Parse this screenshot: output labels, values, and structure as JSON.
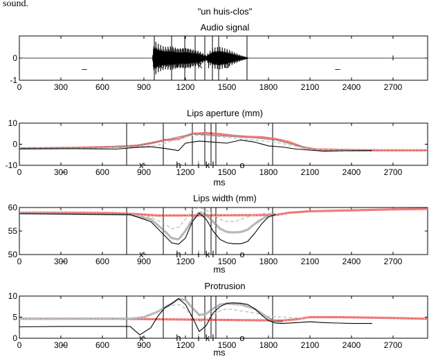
{
  "header_fragment": "sound.",
  "figure_title": "\"un huis-clos\"",
  "x_ticks": [
    0,
    300,
    600,
    900,
    1200,
    1500,
    1800,
    2100,
    2400,
    2700
  ],
  "phoneme_labels": [
    "x~",
    "h",
    "i",
    "k",
    "l",
    "o"
  ],
  "colors": {
    "red": "#e8201c",
    "dark_gray": "#888888",
    "light_gray": "#bdbdbd",
    "black": "#000000"
  },
  "chart_data": [
    {
      "type": "line",
      "title": "Audio signal",
      "xlabel": "",
      "ylabel": "",
      "xlim": [
        0,
        2950
      ],
      "ylim": [
        -1,
        1
      ],
      "yticks": [
        -1,
        0
      ],
      "segment_boundaries": [
        975,
        1100,
        1195,
        1270,
        1340,
        1395,
        1440,
        1645
      ],
      "phoneme_positions": [
        1040,
        1150,
        1233,
        1305,
        1367,
        1500
      ],
      "extra_marks": [
        {
          "x": 470,
          "label": "_"
        },
        {
          "x": 2300,
          "label": "_"
        }
      ],
      "signal_envelope": {
        "x": [
          960,
          975,
          1000,
          1050,
          1100,
          1150,
          1200,
          1250,
          1300,
          1350,
          1400,
          1450,
          1500,
          1550,
          1600,
          1645,
          1660
        ],
        "amplitude": [
          0.05,
          0.85,
          0.7,
          0.55,
          0.6,
          0.5,
          0.55,
          0.45,
          0.35,
          0.15,
          0.5,
          0.55,
          0.45,
          0.3,
          0.15,
          0.05,
          0
        ]
      }
    },
    {
      "type": "line",
      "title": "Lips aperture (mm)",
      "xlabel": "ms",
      "ylabel": "",
      "xlim": [
        0,
        2950
      ],
      "ylim": [
        -10,
        10
      ],
      "yticks": [
        -10,
        0,
        10
      ],
      "segment_boundaries": [
        775,
        1040,
        1250,
        1340,
        1385,
        1420,
        1830
      ],
      "phoneme_positions": [
        900,
        1150,
        1295,
        1360,
        1400,
        1610
      ],
      "extra_marks": [
        {
          "x": 320,
          "label": "_"
        }
      ],
      "series": [
        {
          "color": "red",
          "style": "dotted-thick",
          "x": [
            0,
            400,
            700,
            850,
            950,
            1050,
            1150,
            1250,
            1350,
            1450,
            1550,
            1650,
            1750,
            1850,
            1950,
            2050,
            2150,
            2250,
            2400,
            2600,
            2950
          ],
          "y": [
            -2,
            -1.7,
            -1.2,
            -0.7,
            0.5,
            2,
            2.5,
            5,
            5.3,
            4.8,
            4,
            3.5,
            3.3,
            2.5,
            1,
            -1.5,
            -2.5,
            -2.6,
            -2.8,
            -2.9,
            -2.9
          ]
        },
        {
          "color": "dark_gray",
          "style": "solid",
          "x": [
            0,
            500,
            800,
            1000,
            1150,
            1250,
            1350,
            1500,
            1700,
            1850,
            2000,
            2150,
            2400,
            2550
          ],
          "y": [
            -1.8,
            -1.6,
            -1,
            1,
            3.5,
            4.8,
            4.5,
            3.8,
            3,
            2,
            -0.5,
            -2.5,
            -3,
            -3
          ]
        },
        {
          "color": "light_gray",
          "style": "dashed",
          "x": [
            0,
            500,
            800,
            1000,
            1150,
            1250,
            1350,
            1500,
            1700,
            1850,
            2000,
            2150,
            2400,
            2550
          ],
          "y": [
            -2,
            -1.8,
            -1.5,
            -0.5,
            2.5,
            4.3,
            4.2,
            3.2,
            2,
            1,
            -1,
            -2.5,
            -3,
            -3
          ]
        },
        {
          "color": "black",
          "style": "solid",
          "x": [
            0,
            400,
            700,
            850,
            950,
            1050,
            1150,
            1200,
            1300,
            1400,
            1500,
            1600,
            1700,
            1800,
            1900,
            2000,
            2100,
            2200,
            2350,
            2550
          ],
          "y": [
            -2.2,
            -2.1,
            -2.3,
            -1.5,
            -1.2,
            -2,
            -3,
            0.5,
            1.5,
            1,
            0.5,
            2,
            1,
            -0.8,
            -1.3,
            -2.3,
            -2.8,
            -3.3,
            -3.1,
            -3
          ]
        }
      ]
    },
    {
      "type": "line",
      "title": "Lips width (mm)",
      "xlabel": "ms",
      "ylabel": "",
      "xlim": [
        0,
        2950
      ],
      "ylim": [
        50,
        60
      ],
      "yticks": [
        50,
        55,
        60
      ],
      "segment_boundaries": [
        775,
        1040,
        1250,
        1340,
        1385,
        1420,
        1830
      ],
      "phoneme_positions": [
        900,
        1150,
        1295,
        1360,
        1400,
        1610
      ],
      "extra_marks": [
        {
          "x": 320,
          "label": "_"
        }
      ],
      "series": [
        {
          "color": "red",
          "style": "dotted-thick",
          "x": [
            0,
            400,
            700,
            850,
            1000,
            1850,
            1950,
            2100,
            2400,
            2700,
            2950
          ],
          "y": [
            58.9,
            58.9,
            58.8,
            58.6,
            58.3,
            58.4,
            58.9,
            59.2,
            59.4,
            59.6,
            59.7
          ]
        },
        {
          "color": "dark_gray",
          "style": "dotted-thick",
          "x": [
            0,
            800,
            950,
            1050,
            1100,
            1150,
            1200,
            1250,
            1300,
            1350,
            1400,
            1450,
            1500,
            1550,
            1600,
            1650,
            1700,
            1750,
            1800,
            1850
          ],
          "y": [
            58.8,
            58.5,
            57.5,
            55,
            53.5,
            53.2,
            55,
            57.5,
            59,
            58.5,
            57,
            55.5,
            54.8,
            54.7,
            54.8,
            55.3,
            56.5,
            57.5,
            58.2,
            58.5
          ]
        },
        {
          "color": "light_gray",
          "style": "dashed",
          "x": [
            0,
            800,
            950,
            1050,
            1100,
            1150,
            1200,
            1250,
            1300,
            1350,
            1400,
            1450,
            1500,
            1550,
            1600,
            1650,
            1700,
            1750,
            1850
          ],
          "y": [
            58.8,
            58.5,
            58,
            56.5,
            55.5,
            55.8,
            57.5,
            59.5,
            60,
            59.5,
            58.5,
            57.5,
            57,
            57,
            57.5,
            58,
            58.5,
            58.7,
            58.8
          ]
        },
        {
          "color": "black",
          "style": "solid",
          "x": [
            0,
            800,
            950,
            1050,
            1100,
            1150,
            1200,
            1250,
            1300,
            1350,
            1400,
            1450,
            1500,
            1550,
            1600,
            1650,
            1700,
            1750,
            1800,
            1850
          ],
          "y": [
            58.7,
            58.5,
            57,
            54,
            52.5,
            52.2,
            53.5,
            57,
            58.8,
            57.5,
            55,
            53.2,
            52.5,
            52.3,
            52.3,
            52.8,
            54.5,
            56.5,
            58,
            58.5
          ]
        }
      ]
    },
    {
      "type": "line",
      "title": "Protrusion",
      "xlabel": "ms",
      "ylabel": "",
      "xlim": [
        0,
        2950
      ],
      "ylim": [
        0,
        10
      ],
      "yticks": [
        0,
        5,
        10
      ],
      "segment_boundaries": [
        775,
        1040,
        1250,
        1340,
        1385,
        1420,
        1830
      ],
      "phoneme_positions": [
        900,
        1150,
        1295,
        1360,
        1400,
        1610
      ],
      "extra_marks": [
        {
          "x": 320,
          "label": "_"
        }
      ],
      "series": [
        {
          "color": "red",
          "style": "dotted-thick",
          "x": [
            0,
            400,
            700,
            1900,
            2000,
            2100,
            2300,
            2500,
            2700,
            2950
          ],
          "y": [
            4.6,
            4.6,
            4.6,
            4.2,
            4.5,
            5,
            5,
            4.9,
            4.8,
            4.6
          ]
        },
        {
          "color": "dark_gray",
          "style": "dotted-thick",
          "x": [
            0,
            800,
            900,
            1000,
            1100,
            1150,
            1200,
            1250,
            1300,
            1350,
            1400,
            1450,
            1500,
            1600,
            1700,
            1800,
            1850,
            1900
          ],
          "y": [
            4.6,
            4.6,
            5,
            6.3,
            8.2,
            9.3,
            9.1,
            7.2,
            5.5,
            5.8,
            7,
            8,
            8.2,
            8,
            7,
            4.8,
            4,
            4
          ]
        },
        {
          "color": "light_gray",
          "style": "dashed",
          "x": [
            0,
            800,
            900,
            1000,
            1100,
            1150,
            1200,
            1250,
            1300,
            1350,
            1400,
            1450,
            1500,
            1600,
            1700,
            1800,
            1900,
            2000,
            2100
          ],
          "y": [
            4.6,
            4.6,
            5,
            6.5,
            7.8,
            8,
            7,
            5,
            4,
            4.3,
            5.5,
            6.5,
            7,
            6.5,
            6,
            5.2,
            5,
            4.8,
            4.8
          ]
        },
        {
          "color": "black",
          "style": "solid",
          "x": [
            0,
            300,
            600,
            800,
            870,
            950,
            1000,
            1050,
            1100,
            1150,
            1200,
            1250,
            1300,
            1350,
            1400,
            1450,
            1500,
            1550,
            1600,
            1650,
            1700,
            1750,
            1800,
            1850,
            1900,
            2000,
            2100,
            2200,
            2300,
            2400,
            2550
          ],
          "y": [
            2.7,
            2.8,
            2.8,
            2.8,
            0.8,
            2.5,
            5.2,
            7.2,
            8.2,
            9.4,
            8,
            5,
            1.6,
            3,
            6,
            7.5,
            8.3,
            8.4,
            8.3,
            8,
            7,
            5.5,
            4.2,
            3.6,
            3.5,
            3.7,
            3.9,
            3.7,
            3.6,
            3.5,
            3.5
          ]
        }
      ]
    }
  ]
}
